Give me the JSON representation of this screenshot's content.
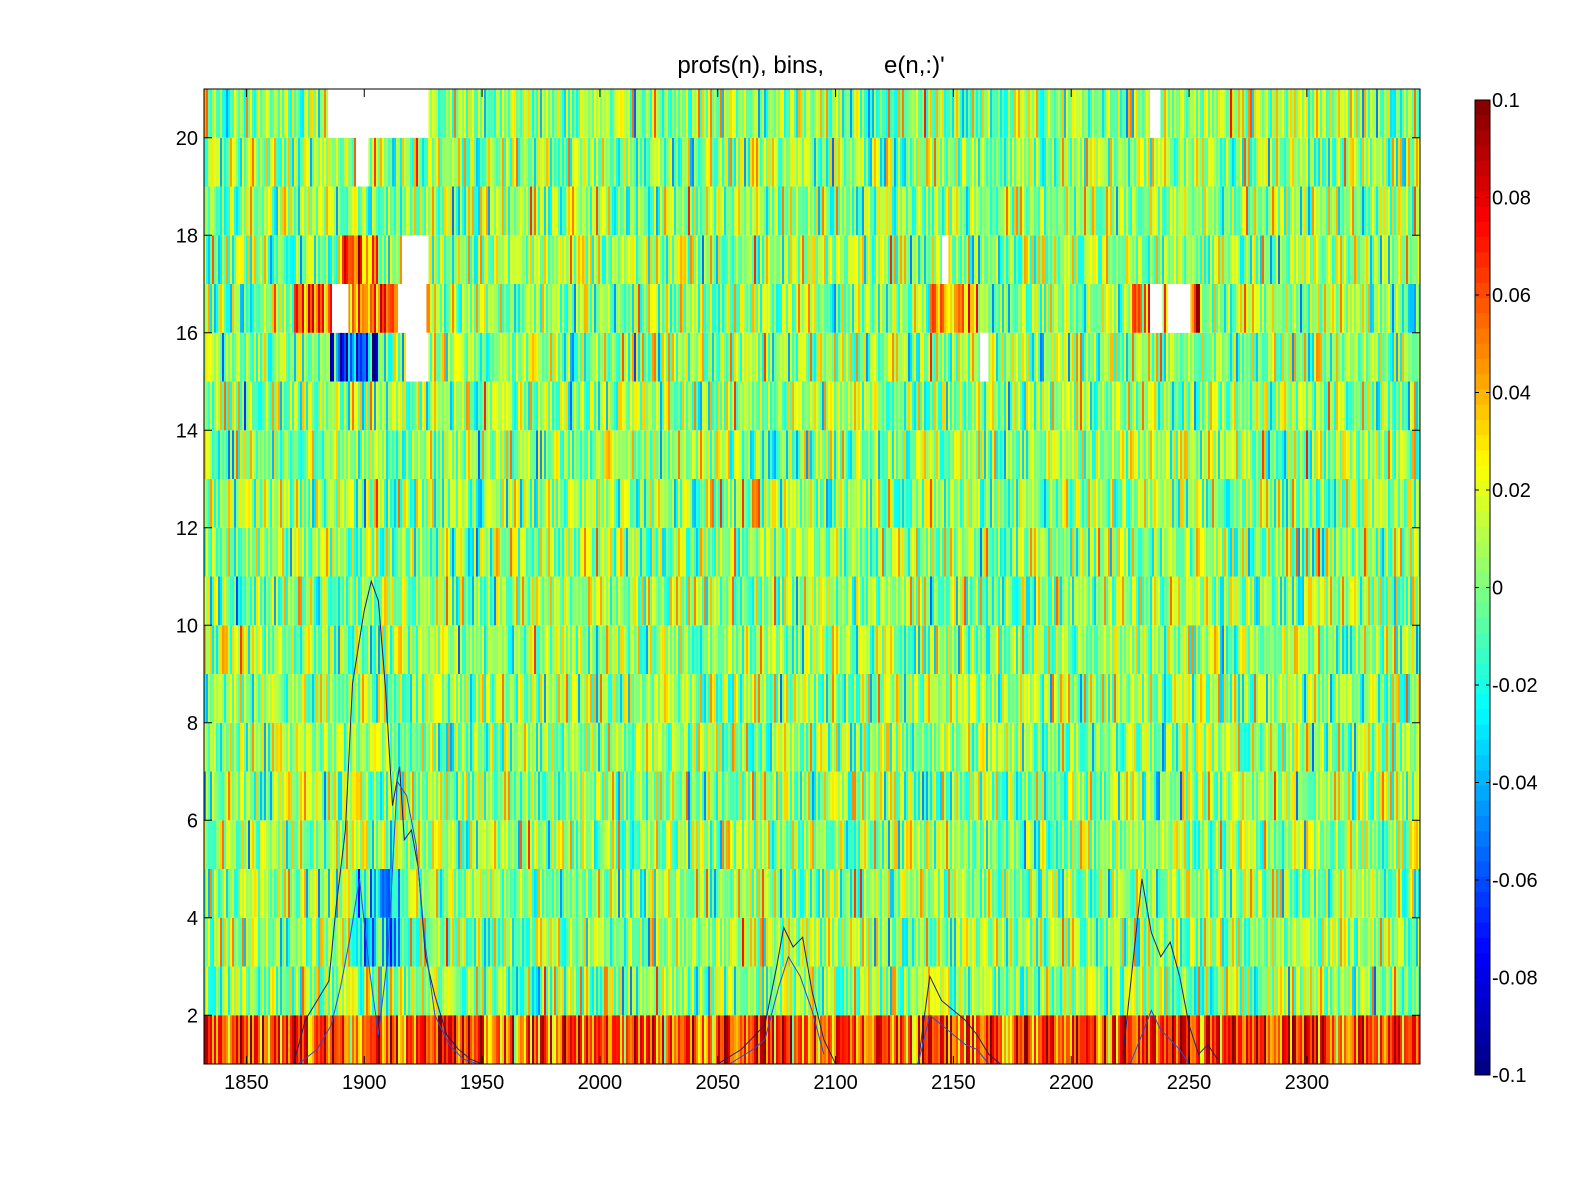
{
  "chart_data": {
    "type": "heatmap",
    "title": "profs(n), bins,         e(n,:)'",
    "xlabel": "",
    "ylabel": "",
    "xlim": [
      1832,
      2348
    ],
    "ylim": [
      1,
      21
    ],
    "rows": 20,
    "x_ticks": [
      1850,
      1900,
      1950,
      2000,
      2050,
      2100,
      2150,
      2200,
      2250,
      2300
    ],
    "x_tick_labels": [
      "1850",
      "1900",
      "1950",
      "2000",
      "2050",
      "2100",
      "2150",
      "2200",
      "2250",
      "2300"
    ],
    "y_ticks": [
      2,
      4,
      6,
      8,
      10,
      12,
      14,
      16,
      18,
      20
    ],
    "y_tick_labels": [
      "2",
      "4",
      "6",
      "8",
      "10",
      "12",
      "14",
      "16",
      "18",
      "20"
    ],
    "colormap": "jet",
    "clim": [
      -0.1,
      0.1
    ],
    "colorbar_ticks": [
      0.1,
      0.08,
      0.06,
      0.04,
      0.02,
      0,
      -0.02,
      -0.04,
      -0.06,
      -0.08,
      -0.1
    ],
    "colorbar_labels": [
      "0.1",
      "0.08",
      "0.06",
      "0.04",
      "0.02",
      "0",
      "-0.02",
      "-0.04",
      "-0.06",
      "-0.08",
      "-0.1"
    ],
    "grid": false,
    "legend": "none",
    "missing_regions": [
      {
        "row": 20,
        "x_start": 1884,
        "x_end": 1927
      },
      {
        "row": 19,
        "x_start": 1896,
        "x_end": 1901
      },
      {
        "row": 20,
        "x_start": 2233,
        "x_end": 2237
      },
      {
        "row": 17,
        "x_start": 1916,
        "x_end": 1927
      },
      {
        "row": 16,
        "x_start": 1914,
        "x_end": 1926
      },
      {
        "row": 16,
        "x_start": 1886,
        "x_end": 1893
      },
      {
        "row": 16,
        "x_start": 2233,
        "x_end": 2238
      },
      {
        "row": 16,
        "x_start": 2241,
        "x_end": 2250
      },
      {
        "row": 15,
        "x_start": 1917,
        "x_end": 1927
      },
      {
        "row": 15,
        "x_start": 2161,
        "x_end": 2164
      },
      {
        "row": 17,
        "x_start": 2145,
        "x_end": 2147
      }
    ],
    "strong_regions": [
      {
        "row": 1,
        "x_start": 1832,
        "x_end": 2348,
        "bias": 0.055
      },
      {
        "row": 16,
        "x_start": 1870,
        "x_end": 1930,
        "bias": 0.05
      },
      {
        "row": 16,
        "x_start": 2140,
        "x_end": 2160,
        "bias": 0.04
      },
      {
        "row": 16,
        "x_start": 2225,
        "x_end": 2255,
        "bias": 0.05
      },
      {
        "row": 15,
        "x_start": 1885,
        "x_end": 1905,
        "bias": -0.07
      },
      {
        "row": 17,
        "x_start": 1890,
        "x_end": 1905,
        "bias": 0.05
      },
      {
        "row": 4,
        "x_start": 1895,
        "x_end": 1915,
        "bias": -0.04
      },
      {
        "row": 3,
        "x_start": 1895,
        "x_end": 1915,
        "bias": -0.03
      }
    ],
    "series": [
      {
        "color": "#1f1f6e",
        "x": [
          1870,
          1875,
          1880,
          1885,
          1888,
          1892,
          1895,
          1898,
          1900,
          1903,
          1906,
          1909,
          1912,
          1915,
          1917,
          1920,
          1923,
          1926,
          1930,
          1935,
          1940,
          1945,
          1950
        ],
        "y": [
          1.0,
          1.9,
          2.3,
          2.7,
          4.2,
          5.8,
          8.8,
          9.7,
          10.3,
          10.9,
          10.5,
          8.7,
          6.3,
          7.1,
          5.6,
          5.8,
          5.0,
          3.2,
          2.4,
          1.6,
          1.3,
          1.1,
          1.0
        ]
      },
      {
        "color": "#1f1f6e",
        "x": [
          2050,
          2060,
          2066,
          2070,
          2075,
          2078,
          2082,
          2086,
          2090,
          2095,
          2100
        ],
        "y": [
          1.0,
          1.3,
          1.6,
          1.8,
          3.0,
          3.8,
          3.4,
          3.6,
          2.5,
          1.5,
          1.0
        ]
      },
      {
        "color": "#1f1f6e",
        "x": [
          2135,
          2140,
          2145,
          2150,
          2155,
          2160,
          2165,
          2170
        ],
        "y": [
          1.0,
          2.8,
          2.3,
          2.1,
          1.9,
          1.6,
          1.2,
          1.0
        ]
      },
      {
        "color": "#1f1f6e",
        "x": [
          2222,
          2226,
          2230,
          2234,
          2238,
          2242,
          2246,
          2250,
          2254,
          2258,
          2262
        ],
        "y": [
          1.2,
          3.0,
          4.8,
          3.7,
          3.2,
          3.5,
          2.8,
          1.8,
          1.2,
          1.4,
          1.1
        ]
      },
      {
        "color": "#2a4bd7",
        "x": [
          1872,
          1880,
          1886,
          1890,
          1894,
          1898,
          1902,
          1906,
          1910,
          1914,
          1918,
          1922,
          1926,
          1930,
          1936,
          1942,
          1948
        ],
        "y": [
          1.0,
          1.3,
          1.8,
          2.6,
          3.6,
          4.8,
          3.0,
          1.6,
          3.2,
          6.8,
          6.5,
          5.5,
          3.4,
          2.0,
          1.4,
          1.1,
          1.0
        ]
      },
      {
        "color": "#2a4bd7",
        "x": [
          2055,
          2065,
          2070,
          2076,
          2080,
          2085,
          2090,
          2095
        ],
        "y": [
          1.0,
          1.3,
          1.5,
          2.6,
          3.2,
          2.8,
          2.1,
          1.2
        ]
      },
      {
        "color": "#2a4bd7",
        "x": [
          2135,
          2140,
          2145,
          2150,
          2155,
          2160,
          2165
        ],
        "y": [
          1.0,
          2.0,
          1.8,
          1.6,
          1.4,
          1.3,
          1.0
        ]
      },
      {
        "color": "#2a4bd7",
        "x": [
          2225,
          2230,
          2234,
          2238,
          2242,
          2246,
          2250
        ],
        "y": [
          1.0,
          1.6,
          2.1,
          1.7,
          1.5,
          1.3,
          1.0
        ]
      }
    ]
  }
}
